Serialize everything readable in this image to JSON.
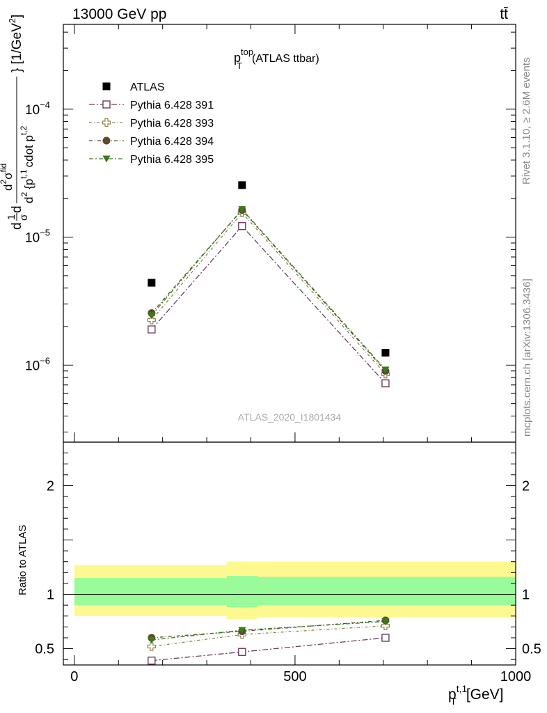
{
  "header": {
    "energy_label": "13000 GeV pp",
    "process_label": "tt̄"
  },
  "side_labels": {
    "rivet": "Rivet 3.1.10, ≥ 2.6M events",
    "site": "mcplots.cern.ch [arXiv:1306.3436]"
  },
  "chart_data": [
    {
      "type": "line",
      "panel": "main",
      "title": {
        "main": "p",
        "sup": "top",
        "sub": "T",
        "suffix": "(ATLAS ttbar)"
      },
      "ylabel": "d¹/σ d d²σ^fid / d² {p_T^t,1 cdot p_T^t,2} [1/GeV²]",
      "ylabel_parts": {
        "d1": "d",
        "frac1_num": "1",
        "frac1_den": "σ",
        "d2": "d",
        "frac2_num": "d",
        "frac2_num_sup": "2",
        "frac2_num_main": "σ",
        "frac2_num_sup2": "fid",
        "frac2_den": "d",
        "frac2_den_sup": "2",
        "frac2_den_rest": "{p",
        "pt1_sup": "t,1",
        "pt_sub": "T",
        "cdot": "cdot p",
        "pt2_sup": "t,2",
        "pt2_sub": "T",
        "close": "} [1/GeV",
        "unit_sup": "2",
        "unit_close": "]"
      },
      "log_y": true,
      "xlim": [
        -25,
        1000
      ],
      "ylim": [
        2.5e-07,
        0.00046
      ],
      "ytick_labels": [
        {
          "value": 1e-06,
          "base": "10",
          "exp": "−6"
        },
        {
          "value": 1e-05,
          "base": "10",
          "exp": "−5"
        },
        {
          "value": 0.0001,
          "base": "10",
          "exp": "−4"
        }
      ],
      "watermark": "ATLAS_2020_I1801434",
      "legend_position": "top-left",
      "x": [
        175,
        380,
        705
      ],
      "series": [
        {
          "name": "ATLAS",
          "values": [
            4.4e-06,
            2.55e-05,
            1.25e-06
          ],
          "marker": "filled-square",
          "color": "#000000"
        },
        {
          "name": "Pythia 6.428 391",
          "values": [
            1.9e-06,
            1.22e-05,
            7.2e-07
          ],
          "marker": "open-square",
          "color": "#6b3d5e"
        },
        {
          "name": "Pythia 6.428 393",
          "values": [
            2.25e-06,
            1.55e-05,
            8.5e-07
          ],
          "marker": "open-cross",
          "color": "#8a8450"
        },
        {
          "name": "Pythia 6.428 394",
          "values": [
            2.55e-06,
            1.63e-05,
            9e-07
          ],
          "marker": "filled-circle",
          "color": "#5c4a2a"
        },
        {
          "name": "Pythia 6.428 395",
          "values": [
            2.45e-06,
            1.65e-05,
            9.2e-07
          ],
          "marker": "filled-triangle-down",
          "color": "#3b7a1c"
        }
      ]
    },
    {
      "type": "line",
      "panel": "ratio",
      "ylabel": "Ratio to ATLAS",
      "xlabel": {
        "main": "p",
        "sup": "t,1",
        "sub": "T",
        "unit": "[GeV]"
      },
      "xlim": [
        -25,
        1000
      ],
      "ylim": [
        0.35,
        2.4
      ],
      "x_ticks": [
        0,
        500,
        1000
      ],
      "x_tick_labels": [
        "0",
        "500",
        "1000"
      ],
      "y_ticks": [
        0.5,
        1,
        2
      ],
      "y_tick_labels": [
        "0.5",
        "1",
        "2"
      ],
      "bins": [
        {
          "x0": 0,
          "x1": 345,
          "yellow": [
            0.8,
            1.27
          ],
          "green": [
            0.9,
            1.15
          ]
        },
        {
          "x0": 345,
          "x1": 415,
          "yellow": [
            0.77,
            1.3
          ],
          "green": [
            0.88,
            1.17
          ]
        },
        {
          "x0": 415,
          "x1": 1000,
          "yellow": [
            0.79,
            1.3
          ],
          "green": [
            0.9,
            1.16
          ]
        }
      ],
      "x": [
        175,
        380,
        705
      ],
      "series": [
        {
          "name": "Pythia 6.428 391",
          "values": [
            0.39,
            0.47,
            0.6
          ],
          "errors": [
            0.03,
            0.025,
            0.035
          ],
          "marker": "open-square",
          "color": "#6b3d5e"
        },
        {
          "name": "Pythia 6.428 393",
          "values": [
            0.52,
            0.63,
            0.71
          ],
          "errors": [
            0.03,
            0.025,
            0.035
          ],
          "marker": "open-cross",
          "color": "#8a8450"
        },
        {
          "name": "Pythia 6.428 394",
          "values": [
            0.6,
            0.66,
            0.76
          ],
          "errors": [
            0.03,
            0.025,
            0.035
          ],
          "marker": "filled-circle",
          "color": "#5c4a2a"
        },
        {
          "name": "Pythia 6.428 395",
          "values": [
            0.58,
            0.67,
            0.75
          ],
          "errors": [
            0.03,
            0.025,
            0.035
          ],
          "marker": "filled-triangle-down",
          "color": "#3b7a1c"
        }
      ]
    }
  ]
}
